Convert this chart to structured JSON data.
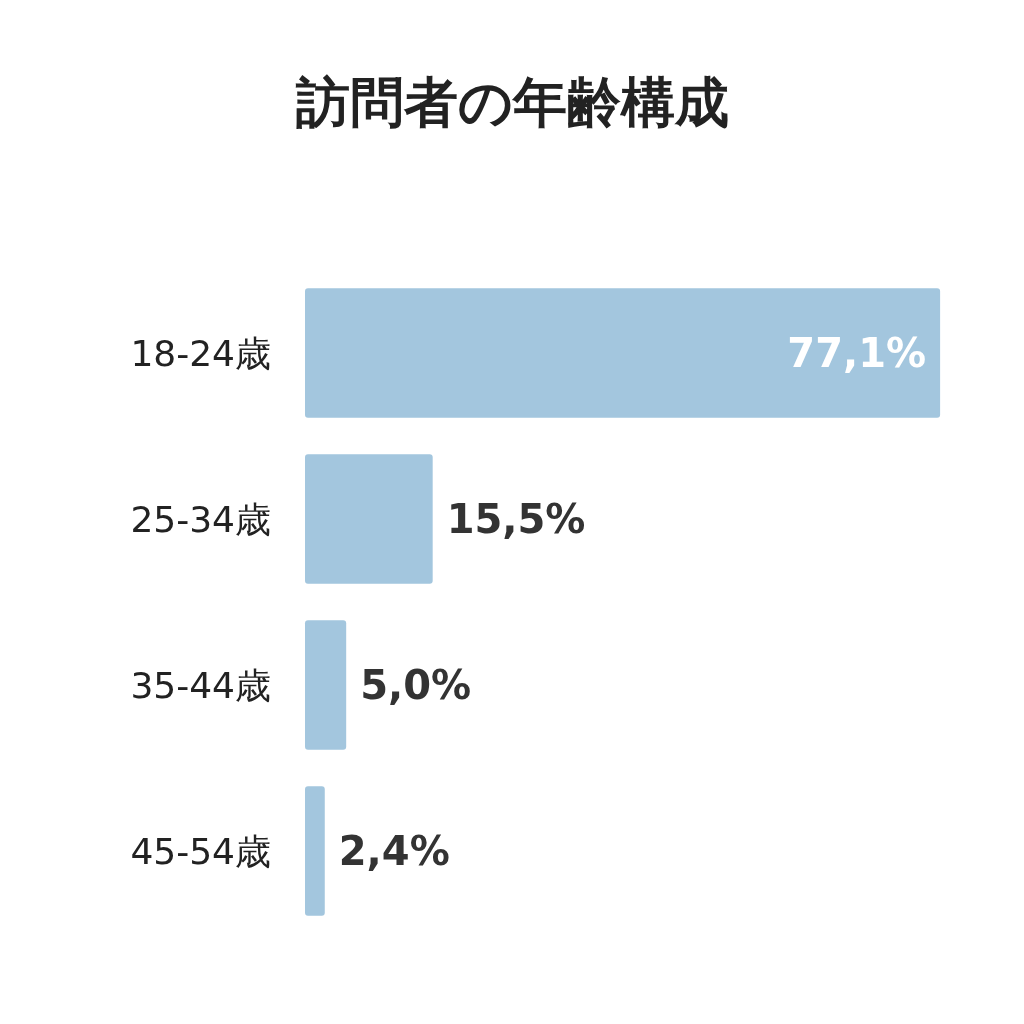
{
  "chart_data": {
    "type": "bar",
    "orientation": "horizontal",
    "title": "訪問者の年齢構成",
    "categories": [
      "18-24歳",
      "25-34歳",
      "35-44歳",
      "45-54歳"
    ],
    "values": [
      77.1,
      15.5,
      5.0,
      2.4
    ],
    "color": "#a3c6de",
    "value_labels": [
      "77,1%",
      "15,5%",
      "5,0%",
      "2,4%"
    ]
  }
}
